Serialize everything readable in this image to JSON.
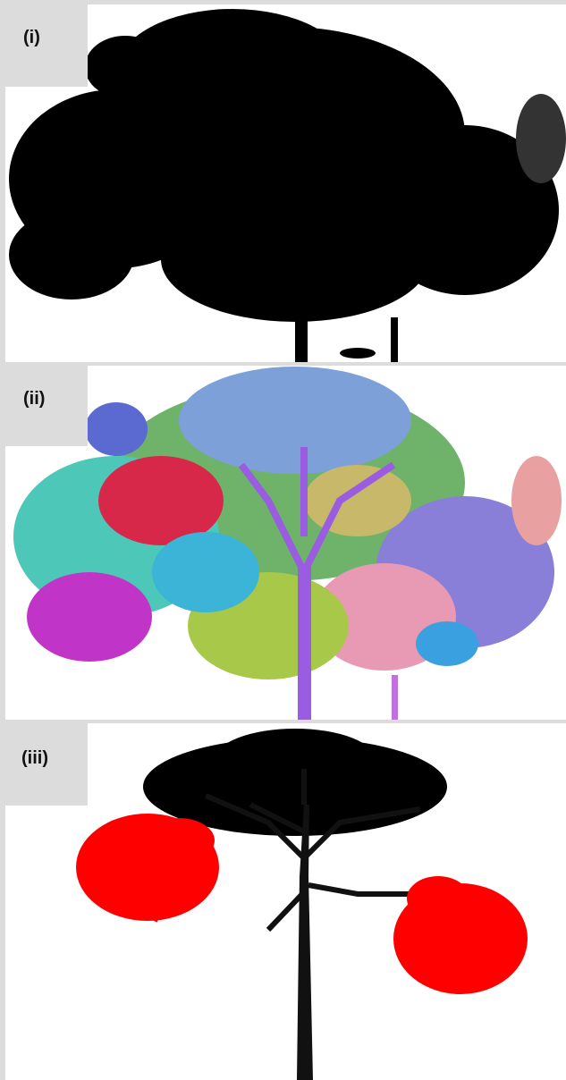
{
  "panels": [
    {
      "label": "(i)"
    },
    {
      "label": "(ii)"
    },
    {
      "label": "(iii)"
    }
  ]
}
